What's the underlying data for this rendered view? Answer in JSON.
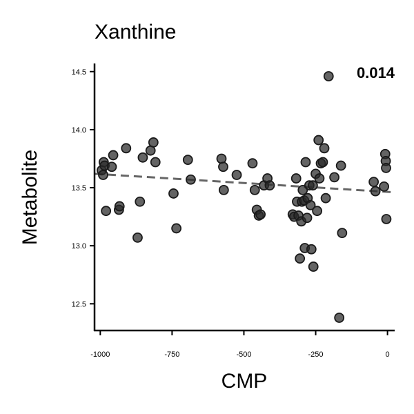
{
  "chart_data": {
    "type": "scatter",
    "title": "Xanthine",
    "xlabel": "CMP",
    "ylabel": "Metabolite",
    "annotation": "0.014",
    "xlim": [
      -1020,
      25
    ],
    "ylim": [
      12.27,
      14.57
    ],
    "xticks": [
      -1000,
      -750,
      -500,
      -250,
      0
    ],
    "xtick_labels": [
      "-1000",
      "-750",
      "-500",
      "-250",
      "0"
    ],
    "yticks": [
      12.5,
      13.0,
      13.5,
      14.0,
      14.5
    ],
    "ytick_labels": [
      "12.5",
      "13.0",
      "13.5",
      "14.0",
      "14.5"
    ],
    "grid": false,
    "trend_line": {
      "x": [
        -1020,
        25
      ],
      "y": [
        13.62,
        13.46
      ]
    },
    "points": [
      {
        "x": -995,
        "y": 13.65
      },
      {
        "x": -990,
        "y": 13.61
      },
      {
        "x": -988,
        "y": 13.72
      },
      {
        "x": -985,
        "y": 13.69
      },
      {
        "x": -980,
        "y": 13.3
      },
      {
        "x": -960,
        "y": 13.68
      },
      {
        "x": -955,
        "y": 13.78
      },
      {
        "x": -935,
        "y": 13.31
      },
      {
        "x": -933,
        "y": 13.34
      },
      {
        "x": -910,
        "y": 13.84
      },
      {
        "x": -870,
        "y": 13.07
      },
      {
        "x": -862,
        "y": 13.38
      },
      {
        "x": -852,
        "y": 13.76
      },
      {
        "x": -825,
        "y": 13.82
      },
      {
        "x": -815,
        "y": 13.89
      },
      {
        "x": -808,
        "y": 13.72
      },
      {
        "x": -745,
        "y": 13.45
      },
      {
        "x": -735,
        "y": 13.15
      },
      {
        "x": -695,
        "y": 13.74
      },
      {
        "x": -685,
        "y": 13.57
      },
      {
        "x": -578,
        "y": 13.75
      },
      {
        "x": -572,
        "y": 13.68
      },
      {
        "x": -570,
        "y": 13.48
      },
      {
        "x": -525,
        "y": 13.61
      },
      {
        "x": -470,
        "y": 13.71
      },
      {
        "x": -462,
        "y": 13.48
      },
      {
        "x": -455,
        "y": 13.31
      },
      {
        "x": -448,
        "y": 13.26
      },
      {
        "x": -442,
        "y": 13.27
      },
      {
        "x": -430,
        "y": 13.52
      },
      {
        "x": -418,
        "y": 13.58
      },
      {
        "x": -410,
        "y": 13.52
      },
      {
        "x": -330,
        "y": 13.27
      },
      {
        "x": -325,
        "y": 13.25
      },
      {
        "x": -318,
        "y": 13.58
      },
      {
        "x": -315,
        "y": 13.38
      },
      {
        "x": -310,
        "y": 13.26
      },
      {
        "x": -305,
        "y": 12.89
      },
      {
        "x": -300,
        "y": 13.21
      },
      {
        "x": -298,
        "y": 13.38
      },
      {
        "x": -295,
        "y": 13.48
      },
      {
        "x": -290,
        "y": 13.39
      },
      {
        "x": -288,
        "y": 12.98
      },
      {
        "x": -285,
        "y": 13.72
      },
      {
        "x": -280,
        "y": 13.24
      },
      {
        "x": -278,
        "y": 13.41
      },
      {
        "x": -272,
        "y": 13.52
      },
      {
        "x": -268,
        "y": 13.35
      },
      {
        "x": -265,
        "y": 12.97
      },
      {
        "x": -260,
        "y": 13.52
      },
      {
        "x": -258,
        "y": 12.82
      },
      {
        "x": -250,
        "y": 13.62
      },
      {
        "x": -245,
        "y": 13.3
      },
      {
        "x": -240,
        "y": 13.91
      },
      {
        "x": -237,
        "y": 13.58
      },
      {
        "x": -232,
        "y": 13.71
      },
      {
        "x": -225,
        "y": 13.72
      },
      {
        "x": -220,
        "y": 13.84
      },
      {
        "x": -215,
        "y": 13.41
      },
      {
        "x": -205,
        "y": 14.46
      },
      {
        "x": -185,
        "y": 13.59
      },
      {
        "x": -168,
        "y": 12.38
      },
      {
        "x": -162,
        "y": 13.69
      },
      {
        "x": -158,
        "y": 13.11
      },
      {
        "x": -48,
        "y": 13.55
      },
      {
        "x": -42,
        "y": 13.47
      },
      {
        "x": -12,
        "y": 13.51
      },
      {
        "x": -8,
        "y": 13.79
      },
      {
        "x": -6,
        "y": 13.73
      },
      {
        "x": -5,
        "y": 13.67
      },
      {
        "x": -4,
        "y": 13.23
      }
    ]
  }
}
